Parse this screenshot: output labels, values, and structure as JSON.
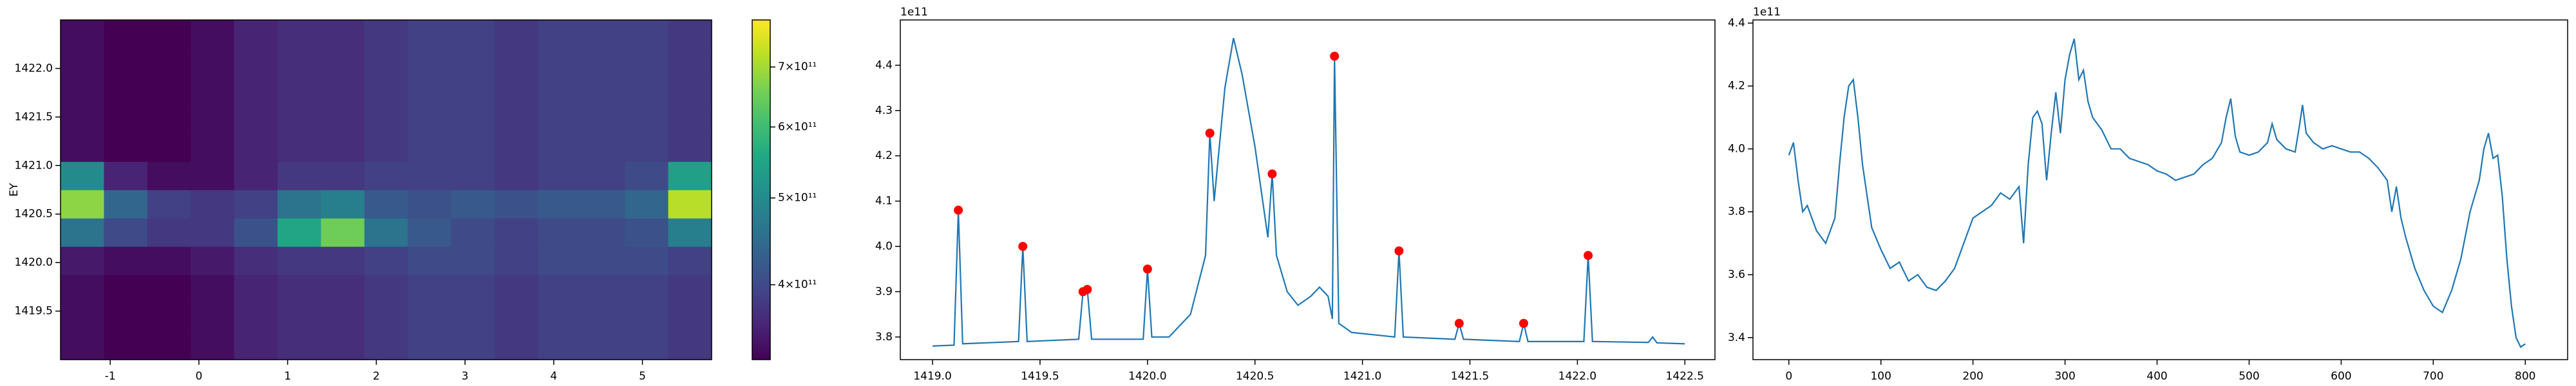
{
  "chart_data": [
    {
      "type": "heatmap",
      "ylabel": "EY",
      "xlim": [
        -1.56,
        5.78
      ],
      "ylim": [
        1419.0,
        1422.5
      ],
      "xticks": [
        -1,
        0,
        1,
        2,
        3,
        4,
        5
      ],
      "yticks": [
        1419.5,
        {
          "value": 1420.0,
          "label": "1420.0"
        },
        1420.5,
        {
          "value": 1421.0,
          "label": "1421.0"
        },
        1421.5,
        {
          "value": 1422.0,
          "label": "1422.0"
        }
      ],
      "colormap": "viridis",
      "z": [
        [
          340000000000.0,
          330000000000.0,
          330000000000.0,
          340000000000.0,
          360000000000.0,
          370000000000.0,
          370000000000.0,
          380000000000.0,
          390000000000.0,
          390000000000.0,
          380000000000.0,
          390000000000.0,
          390000000000.0,
          390000000000.0,
          380000000000.0
        ],
        [
          340000000000.0,
          330000000000.0,
          330000000000.0,
          340000000000.0,
          360000000000.0,
          370000000000.0,
          370000000000.0,
          380000000000.0,
          390000000000.0,
          390000000000.0,
          380000000000.0,
          390000000000.0,
          390000000000.0,
          390000000000.0,
          380000000000.0
        ],
        [
          340000000000.0,
          330000000000.0,
          330000000000.0,
          340000000000.0,
          360000000000.0,
          370000000000.0,
          370000000000.0,
          380000000000.0,
          390000000000.0,
          390000000000.0,
          380000000000.0,
          390000000000.0,
          390000000000.0,
          390000000000.0,
          380000000000.0
        ],
        [
          350000000000.0,
          340000000000.0,
          340000000000.0,
          350000000000.0,
          370000000000.0,
          380000000000.0,
          380000000000.0,
          390000000000.0,
          400000000000.0,
          400000000000.0,
          390000000000.0,
          400000000000.0,
          400000000000.0,
          400000000000.0,
          390000000000.0
        ],
        [
          460000000000.0,
          400000000000.0,
          380000000000.0,
          380000000000.0,
          410000000000.0,
          550000000000.0,
          650000000000.0,
          460000000000.0,
          420000000000.0,
          400000000000.0,
          390000000000.0,
          400000000000.0,
          400000000000.0,
          410000000000.0,
          480000000000.0
        ],
        [
          680000000000.0,
          440000000000.0,
          390000000000.0,
          380000000000.0,
          390000000000.0,
          460000000000.0,
          480000000000.0,
          420000000000.0,
          410000000000.0,
          420000000000.0,
          410000000000.0,
          420000000000.0,
          420000000000.0,
          440000000000.0,
          720000000000.0
        ],
        [
          500000000000.0,
          360000000000.0,
          340000000000.0,
          340000000000.0,
          360000000000.0,
          380000000000.0,
          380000000000.0,
          390000000000.0,
          390000000000.0,
          390000000000.0,
          380000000000.0,
          390000000000.0,
          390000000000.0,
          400000000000.0,
          540000000000.0
        ],
        [
          340000000000.0,
          330000000000.0,
          330000000000.0,
          340000000000.0,
          360000000000.0,
          370000000000.0,
          370000000000.0,
          380000000000.0,
          390000000000.0,
          390000000000.0,
          380000000000.0,
          390000000000.0,
          390000000000.0,
          390000000000.0,
          380000000000.0
        ],
        [
          340000000000.0,
          330000000000.0,
          330000000000.0,
          340000000000.0,
          360000000000.0,
          370000000000.0,
          370000000000.0,
          380000000000.0,
          390000000000.0,
          390000000000.0,
          380000000000.0,
          390000000000.0,
          390000000000.0,
          390000000000.0,
          380000000000.0
        ],
        [
          340000000000.0,
          330000000000.0,
          330000000000.0,
          340000000000.0,
          360000000000.0,
          370000000000.0,
          370000000000.0,
          380000000000.0,
          390000000000.0,
          390000000000.0,
          380000000000.0,
          390000000000.0,
          390000000000.0,
          390000000000.0,
          380000000000.0
        ],
        [
          340000000000.0,
          330000000000.0,
          330000000000.0,
          340000000000.0,
          360000000000.0,
          370000000000.0,
          370000000000.0,
          380000000000.0,
          390000000000.0,
          390000000000.0,
          380000000000.0,
          390000000000.0,
          390000000000.0,
          390000000000.0,
          380000000000.0
        ],
        [
          340000000000.0,
          330000000000.0,
          330000000000.0,
          340000000000.0,
          360000000000.0,
          370000000000.0,
          370000000000.0,
          380000000000.0,
          390000000000.0,
          390000000000.0,
          380000000000.0,
          390000000000.0,
          390000000000.0,
          390000000000.0,
          380000000000.0
        ]
      ],
      "colorbar": {
        "scale": "log",
        "lim": [
          330000000000.0,
          790000000000.0
        ],
        "ticks": [
          {
            "value": 400000000000.0,
            "label": "4×10¹¹"
          },
          {
            "value": 500000000000.0,
            "label": "5×10¹¹"
          },
          {
            "value": 600000000000.0,
            "label": "6×10¹¹"
          },
          {
            "value": 700000000000.0,
            "label": "7×10¹¹"
          }
        ]
      }
    },
    {
      "type": "line",
      "offset_text": "1e11",
      "xlim": [
        1418.85,
        1422.64
      ],
      "ylim": [
        3.75,
        4.5
      ],
      "xticks": [
        {
          "value": 1419.0,
          "label": "1419.0"
        },
        1419.5,
        {
          "value": 1420.0,
          "label": "1420.0"
        },
        1420.5,
        {
          "value": 1421.0,
          "label": "1421.0"
        },
        1421.5,
        {
          "value": 1422.0,
          "label": "1422.0"
        },
        1422.5
      ],
      "yticks": [
        3.8,
        3.9,
        {
          "value": 4.0,
          "label": "4.0"
        },
        4.1,
        4.2,
        4.3,
        4.4
      ],
      "series": [
        {
          "kind": "line",
          "color": "#1f77b4",
          "x": [
            1419.0,
            1419.1,
            1419.12,
            1419.14,
            1419.4,
            1419.42,
            1419.44,
            1419.68,
            1419.7,
            1419.72,
            1419.74,
            1419.98,
            1420.0,
            1420.02,
            1420.1,
            1420.2,
            1420.27,
            1420.29,
            1420.31,
            1420.36,
            1420.4,
            1420.44,
            1420.5,
            1420.56,
            1420.58,
            1420.6,
            1420.65,
            1420.7,
            1420.76,
            1420.8,
            1420.84,
            1420.86,
            1420.87,
            1420.89,
            1420.95,
            1421.15,
            1421.17,
            1421.19,
            1421.43,
            1421.45,
            1421.47,
            1421.73,
            1421.75,
            1421.77,
            1422.03,
            1422.05,
            1422.07,
            1422.33,
            1422.35,
            1422.37,
            1422.5
          ],
          "values": [
            3.78,
            3.782,
            4.08,
            3.785,
            3.79,
            4.0,
            3.79,
            3.795,
            3.9,
            3.905,
            3.795,
            3.795,
            3.95,
            3.8,
            3.8,
            3.85,
            3.98,
            4.25,
            4.1,
            4.35,
            4.46,
            4.38,
            4.22,
            4.02,
            4.16,
            3.98,
            3.9,
            3.87,
            3.89,
            3.91,
            3.89,
            3.84,
            4.42,
            3.83,
            3.81,
            3.8,
            3.99,
            3.8,
            3.795,
            3.83,
            3.795,
            3.79,
            3.83,
            3.79,
            3.79,
            3.98,
            3.79,
            3.788,
            3.8,
            3.787,
            3.785
          ]
        },
        {
          "kind": "scatter",
          "color": "#ff0000",
          "x": [
            1419.12,
            1419.42,
            1419.7,
            1419.72,
            1420.0,
            1420.29,
            1420.58,
            1420.87,
            1421.17,
            1421.45,
            1421.75,
            1422.05
          ],
          "values": [
            4.08,
            4.0,
            3.9,
            3.905,
            3.95,
            4.25,
            4.16,
            4.42,
            3.99,
            3.83,
            3.83,
            3.98
          ]
        }
      ]
    },
    {
      "type": "line",
      "offset_text": "1e11",
      "xlim": [
        -39,
        846
      ],
      "ylim": [
        3.33,
        4.41
      ],
      "xticks": [
        0,
        100,
        200,
        300,
        400,
        500,
        600,
        700,
        800
      ],
      "yticks": [
        3.4,
        3.6,
        3.8,
        {
          "value": 4.0,
          "label": "4.0"
        },
        4.2,
        4.4
      ],
      "series": [
        {
          "kind": "line",
          "color": "#1f77b4",
          "x": [
            0,
            5,
            10,
            15,
            20,
            30,
            40,
            50,
            55,
            60,
            65,
            70,
            75,
            80,
            90,
            100,
            110,
            120,
            130,
            140,
            150,
            160,
            170,
            180,
            190,
            200,
            210,
            220,
            230,
            240,
            250,
            255,
            260,
            265,
            270,
            275,
            280,
            285,
            290,
            295,
            300,
            305,
            310,
            315,
            320,
            325,
            330,
            340,
            350,
            360,
            370,
            380,
            390,
            400,
            410,
            420,
            430,
            440,
            450,
            460,
            470,
            475,
            480,
            485,
            490,
            500,
            510,
            520,
            525,
            530,
            540,
            550,
            555,
            558,
            562,
            570,
            580,
            590,
            600,
            610,
            620,
            630,
            640,
            650,
            655,
            660,
            665,
            670,
            680,
            690,
            700,
            710,
            720,
            730,
            740,
            750,
            755,
            760,
            765,
            770,
            775,
            780,
            785,
            790,
            795,
            800
          ],
          "values": [
            3.98,
            4.02,
            3.9,
            3.8,
            3.82,
            3.74,
            3.7,
            3.78,
            3.95,
            4.1,
            4.2,
            4.22,
            4.1,
            3.95,
            3.75,
            3.68,
            3.62,
            3.64,
            3.58,
            3.6,
            3.56,
            3.55,
            3.58,
            3.62,
            3.7,
            3.78,
            3.8,
            3.82,
            3.86,
            3.84,
            3.88,
            3.7,
            3.95,
            4.1,
            4.12,
            4.08,
            3.9,
            4.05,
            4.18,
            4.05,
            4.22,
            4.3,
            4.35,
            4.22,
            4.25,
            4.15,
            4.1,
            4.06,
            4.0,
            4.0,
            3.97,
            3.96,
            3.95,
            3.93,
            3.92,
            3.9,
            3.91,
            3.92,
            3.95,
            3.97,
            4.02,
            4.1,
            4.16,
            4.04,
            3.99,
            3.98,
            3.99,
            4.02,
            4.08,
            4.03,
            4.0,
            3.99,
            4.08,
            4.14,
            4.05,
            4.02,
            4.0,
            4.01,
            4.0,
            3.99,
            3.99,
            3.97,
            3.94,
            3.9,
            3.8,
            3.88,
            3.78,
            3.72,
            3.62,
            3.55,
            3.5,
            3.48,
            3.55,
            3.65,
            3.8,
            3.9,
            4.0,
            4.05,
            3.97,
            3.98,
            3.85,
            3.65,
            3.5,
            3.4,
            3.37,
            3.38
          ]
        }
      ]
    }
  ]
}
